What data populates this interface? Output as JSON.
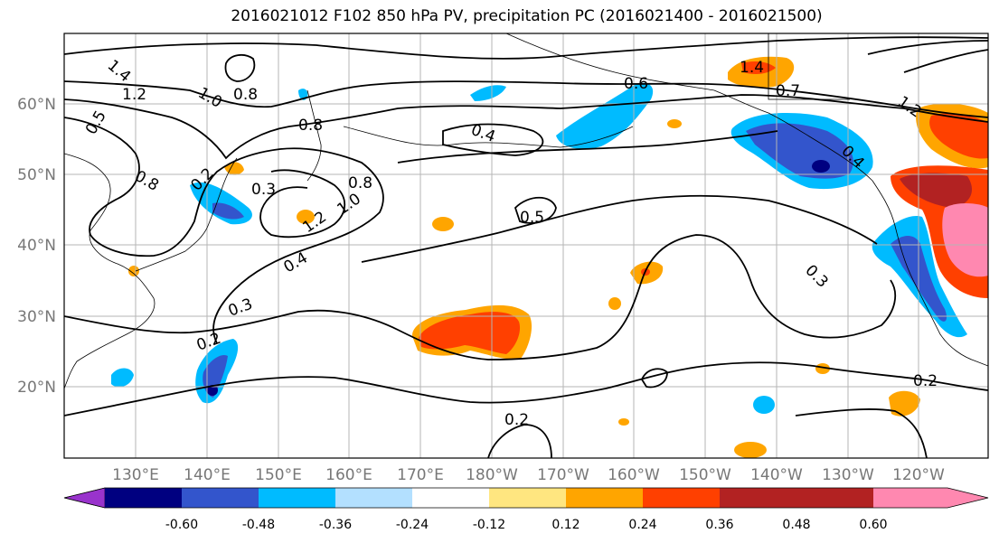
{
  "title": "2016021012 F102 850 hPa PV, precipitation PC (2016021400 - 2016021500)",
  "map": {
    "lat_labels": [
      "60°N",
      "50°N",
      "40°N",
      "30°N",
      "20°N"
    ],
    "lon_labels": [
      "130°E",
      "140°E",
      "150°E",
      "160°E",
      "170°E",
      "180°W",
      "170°W",
      "160°W",
      "150°W",
      "140°W",
      "130°W",
      "120°W"
    ],
    "contour_labels": [
      "1.4",
      "1.0",
      "0.8",
      "1.2",
      "0.8",
      "0.5",
      "0.8",
      "0.2",
      "0.3",
      "1.2",
      "1.0",
      "0.8",
      "0.4",
      "0.6",
      "1.4",
      "0.7",
      "0.4",
      "0.5",
      "0.3",
      "0.4",
      "0.3",
      "0.2",
      "0.2",
      "0.2",
      "1.2"
    ]
  },
  "colorbar": {
    "ticks": [
      "-0.60",
      "-0.48",
      "-0.36",
      "-0.24",
      "-0.12",
      "0.12",
      "0.24",
      "0.36",
      "0.48",
      "0.60"
    ],
    "colors": [
      "#9933cc",
      "#000080",
      "#3355cc",
      "#00bbff",
      "#b3e0ff",
      "#ffffff",
      "#ffe680",
      "#ffa500",
      "#ff4000",
      "#b22222",
      "#ff88b0"
    ]
  }
}
